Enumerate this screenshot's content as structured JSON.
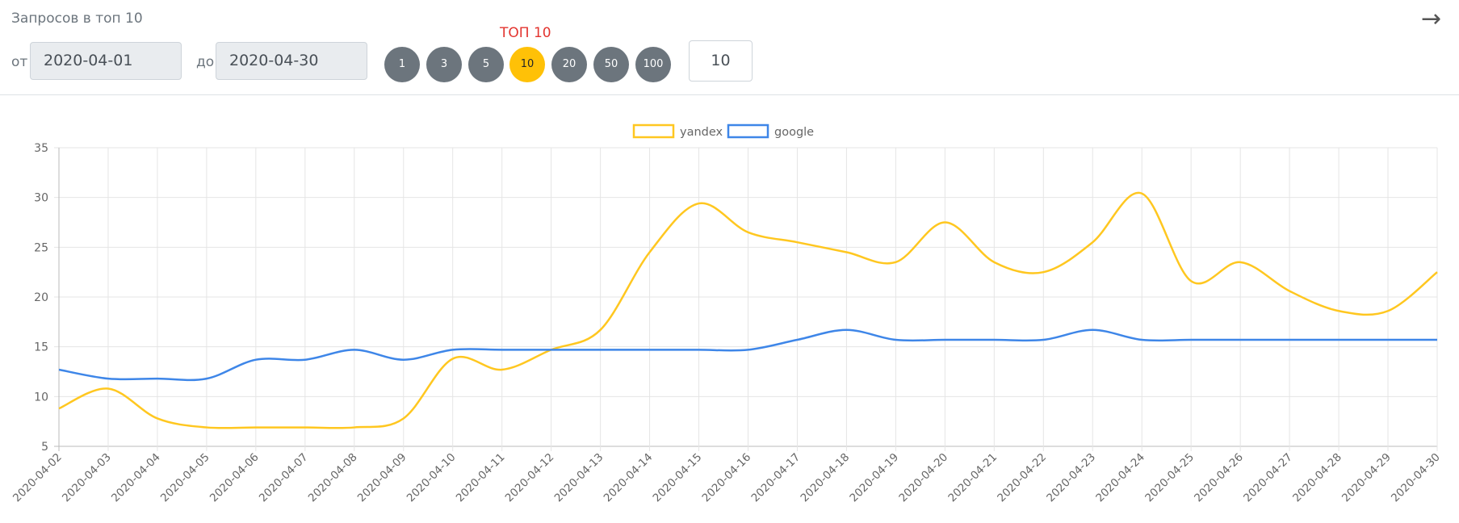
{
  "header": {
    "title": "Запросов в топ 10",
    "from_label": "от",
    "from_date": "2020-04-01",
    "to_label": "до",
    "to_date": "2020-04-30",
    "top_label": "ТОП 10",
    "buttons": [
      "1",
      "3",
      "5",
      "10",
      "20",
      "50",
      "100"
    ],
    "top_input": "10"
  },
  "chart_data": {
    "type": "line",
    "categories": [
      "2020-04-02",
      "2020-04-03",
      "2020-04-04",
      "2020-04-05",
      "2020-04-06",
      "2020-04-07",
      "2020-04-08",
      "2020-04-09",
      "2020-04-10",
      "2020-04-11",
      "2020-04-12",
      "2020-04-13",
      "2020-04-14",
      "2020-04-15",
      "2020-04-16",
      "2020-04-17",
      "2020-04-18",
      "2020-04-19",
      "2020-04-20",
      "2020-04-21",
      "2020-04-22",
      "2020-04-23",
      "2020-04-24",
      "2020-04-25",
      "2020-04-26",
      "2020-04-27",
      "2020-04-28",
      "2020-04-29",
      "2020-04-30"
    ],
    "series": [
      {
        "name": "yandex",
        "color": "#ffc720",
        "values": [
          8.8,
          10.8,
          7.8,
          6.9,
          6.9,
          6.9,
          6.9,
          7.8,
          13.8,
          12.7,
          14.7,
          16.7,
          24.5,
          29.4,
          26.5,
          25.5,
          24.5,
          23.5,
          27.5,
          23.5,
          22.5,
          25.5,
          30.4,
          21.6,
          23.5,
          20.6,
          18.6,
          18.6,
          22.5
        ]
      },
      {
        "name": "google",
        "color": "#3e86e8",
        "values": [
          12.7,
          11.8,
          11.8,
          11.8,
          13.7,
          13.7,
          14.7,
          13.7,
          14.7,
          14.7,
          14.7,
          14.7,
          14.7,
          14.7,
          14.7,
          15.7,
          16.7,
          15.7,
          15.7,
          15.7,
          15.7,
          16.7,
          15.7,
          15.7,
          15.7,
          15.7,
          15.7,
          15.7,
          15.7
        ]
      }
    ],
    "ylim": [
      5,
      35
    ],
    "yticks": [
      5,
      10,
      15,
      20,
      25,
      30,
      35
    ],
    "grid": true,
    "legend": "top"
  }
}
